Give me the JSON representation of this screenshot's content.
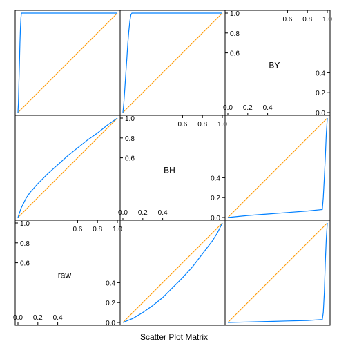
{
  "chart_data": {
    "type": "scatter",
    "title": "Scatter Plot Matrix",
    "variables": [
      "raw",
      "BH",
      "BY"
    ],
    "ticks": {
      "lower": [
        "0.0",
        "0.2",
        "0.4"
      ],
      "upper": [
        "0.6",
        "0.8",
        "1.0"
      ]
    },
    "lim": [
      0,
      1
    ],
    "colors": {
      "curve": "#0080ff",
      "reference": "#ff9900",
      "frame": "#000000"
    },
    "grid": false,
    "panels": [
      {
        "id": "BH-vs-raw",
        "x_var": "raw",
        "y_var": "BH",
        "reference_line": true,
        "x": [
          0,
          0.01,
          0.02,
          0.03,
          0.05,
          0.08,
          0.12,
          0.2,
          0.3,
          0.4,
          0.5,
          0.6,
          0.7,
          0.8,
          0.9,
          1.0
        ],
        "y": [
          0,
          0.03,
          0.06,
          0.09,
          0.13,
          0.19,
          0.25,
          0.34,
          0.44,
          0.53,
          0.62,
          0.7,
          0.78,
          0.85,
          0.93,
          1.0
        ]
      },
      {
        "id": "BY-vs-raw",
        "x_var": "raw",
        "y_var": "BY",
        "reference_line": true,
        "x": [
          0,
          0.005,
          0.01,
          0.015,
          0.02,
          0.025,
          0.03,
          0.035,
          0.04,
          0.045,
          0.05,
          1.0
        ],
        "y": [
          0,
          0.1,
          0.3,
          0.5,
          0.7,
          0.85,
          0.95,
          1.0,
          1.0,
          1.0,
          1.0,
          1.0
        ]
      },
      {
        "id": "BY-vs-BH",
        "x_var": "BH",
        "y_var": "BY",
        "reference_line": true,
        "x": [
          0,
          0.01,
          0.02,
          0.03,
          0.04,
          0.05,
          0.06,
          0.07,
          0.08,
          0.09,
          0.1,
          1.0
        ],
        "y": [
          0,
          0.1,
          0.25,
          0.4,
          0.55,
          0.7,
          0.82,
          0.92,
          0.98,
          1.0,
          1.0,
          1.0
        ]
      },
      {
        "id": "raw-vs-BH",
        "x_var": "BH",
        "y_var": "raw",
        "reference_line": true,
        "x": [
          0,
          0.05,
          0.1,
          0.2,
          0.3,
          0.4,
          0.5,
          0.6,
          0.7,
          0.8,
          0.9,
          0.95,
          1.0
        ],
        "y": [
          0,
          0.02,
          0.04,
          0.1,
          0.17,
          0.25,
          0.35,
          0.45,
          0.56,
          0.69,
          0.82,
          0.9,
          1.0
        ]
      },
      {
        "id": "raw-vs-BY",
        "x_var": "BY",
        "y_var": "raw",
        "reference_line": true,
        "x": [
          0,
          0.2,
          0.4,
          0.6,
          0.8,
          0.95,
          0.96,
          0.97,
          0.98,
          0.99,
          1.0
        ],
        "y": [
          0,
          0.005,
          0.01,
          0.015,
          0.02,
          0.03,
          0.1,
          0.3,
          0.6,
          0.85,
          1.0
        ]
      },
      {
        "id": "BH-vs-BY",
        "x_var": "BY",
        "y_var": "BH",
        "reference_line": true,
        "x": [
          0,
          0.2,
          0.4,
          0.6,
          0.8,
          0.95,
          0.96,
          0.97,
          0.98,
          0.99,
          1.0
        ],
        "y": [
          0,
          0.02,
          0.035,
          0.05,
          0.065,
          0.08,
          0.2,
          0.4,
          0.6,
          0.85,
          1.0
        ]
      }
    ]
  }
}
